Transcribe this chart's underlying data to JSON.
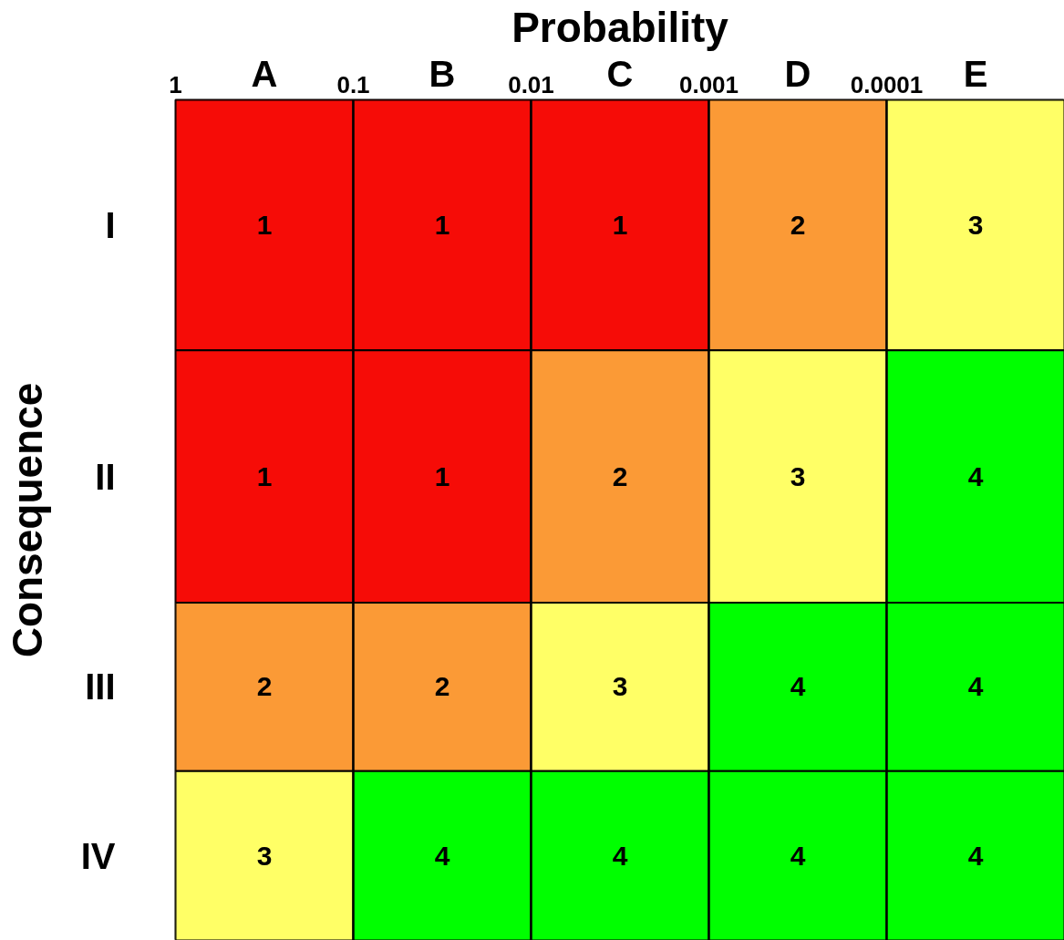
{
  "chart_data": {
    "type": "heatmap",
    "xlabel": "Probability",
    "ylabel": "Consequence",
    "categories": [
      "A",
      "B",
      "C",
      "D",
      "E"
    ],
    "y_categories": [
      "I",
      "II",
      "III",
      "IV"
    ],
    "cells": [
      [
        1,
        1,
        1,
        2,
        3
      ],
      [
        1,
        1,
        2,
        3,
        4
      ],
      [
        2,
        2,
        3,
        4,
        4
      ],
      [
        3,
        4,
        4,
        4,
        4
      ]
    ],
    "colors": [
      "#f60c07",
      "#fb9a36",
      "#ffff66",
      "#00ff00"
    ],
    "x2lim": [
      1,
      1e-05
    ],
    "x2ticks": [
      1,
      0.1,
      0.01,
      0.001,
      {
        "value": 0.0001,
        "label": "0.0001"
      }
    ],
    "log": "x2",
    "grid": true,
    "data_labels": true
  }
}
